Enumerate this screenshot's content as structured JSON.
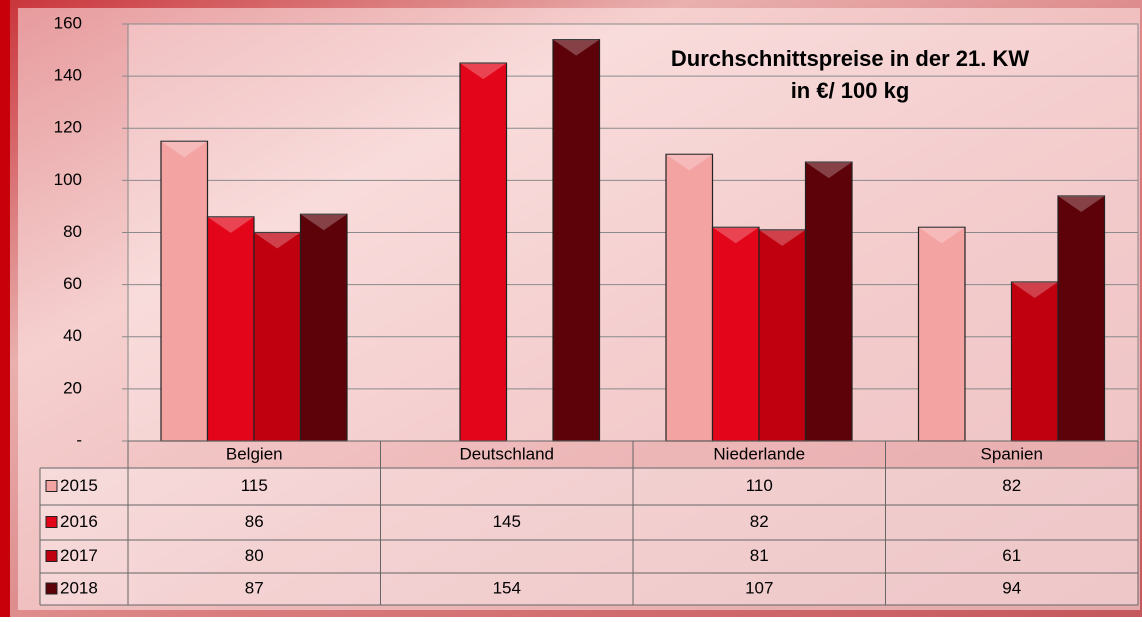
{
  "chart_data": {
    "type": "bar",
    "title": "Durchschnittspreise in der 21. KW",
    "subtitle": "in €/ 100 kg",
    "categories": [
      "Belgien",
      "Deutschland",
      "Niederlande",
      "Spanien"
    ],
    "series": [
      {
        "name": "2015",
        "color": "#f4a3a3",
        "values": [
          115,
          null,
          110,
          82
        ]
      },
      {
        "name": "2016",
        "color": "#e3061a",
        "values": [
          86,
          145,
          82,
          null
        ]
      },
      {
        "name": "2017",
        "color": "#c0000f",
        "values": [
          80,
          null,
          81,
          61
        ]
      },
      {
        "name": "2018",
        "color": "#5c0208",
        "values": [
          87,
          154,
          107,
          94
        ]
      }
    ],
    "ylim": [
      0,
      160
    ],
    "yticks": [
      {
        "value": 0,
        "label": "-"
      },
      20,
      40,
      60,
      80,
      100,
      120,
      140,
      160
    ],
    "grid": true,
    "data_table": true
  }
}
